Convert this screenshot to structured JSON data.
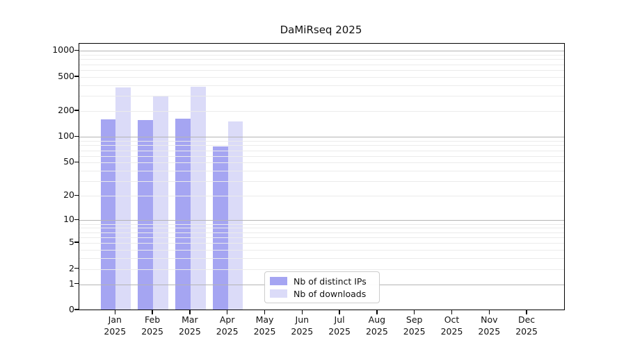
{
  "title": "DaMiRseq 2025",
  "colors": {
    "ips_bar": "#a5a5f2",
    "downloads_bar": "#dbdbf8",
    "grid_minor": "#ebebeb",
    "grid_major": "#b4b4b4",
    "axis": "#000000",
    "legend_border": "#cccccc"
  },
  "legend": {
    "items": [
      {
        "label": "Nb of distinct IPs",
        "color_key": "ips_bar"
      },
      {
        "label": "Nb of downloads",
        "color_key": "downloads_bar"
      }
    ]
  },
  "y_axis": {
    "ticks": [
      0,
      1,
      2,
      5,
      10,
      20,
      50,
      100,
      200,
      500,
      1000
    ]
  },
  "x_axis": {
    "months": [
      "Jan",
      "Feb",
      "Mar",
      "Apr",
      "May",
      "Jun",
      "Jul",
      "Aug",
      "Sep",
      "Oct",
      "Nov",
      "Dec"
    ],
    "year": "2025"
  },
  "chart_data": {
    "type": "bar",
    "title": "DaMiRseq 2025",
    "scale": "log1p",
    "ylim": [
      0,
      1000
    ],
    "grid": "on",
    "legend_position": "bottom-center-inside",
    "categories": [
      "Jan 2025",
      "Feb 2025",
      "Mar 2025",
      "Apr 2025",
      "May 2025",
      "Jun 2025",
      "Jul 2025",
      "Aug 2025",
      "Sep 2025",
      "Oct 2025",
      "Nov 2025",
      "Dec 2025"
    ],
    "series": [
      {
        "name": "Nb of distinct IPs",
        "values": [
          161,
          159,
          164,
          78,
          0,
          0,
          0,
          0,
          0,
          0,
          0,
          0
        ]
      },
      {
        "name": "Nb of downloads",
        "values": [
          375,
          297,
          386,
          152,
          0,
          0,
          0,
          0,
          0,
          0,
          0,
          0
        ]
      }
    ]
  }
}
